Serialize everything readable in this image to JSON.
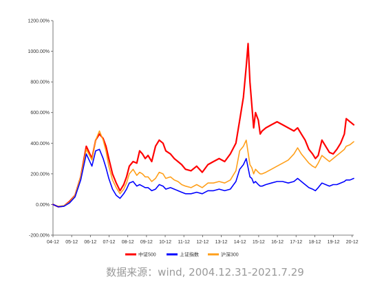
{
  "chart_data": {
    "type": "line",
    "title": "",
    "xlabel": "",
    "ylabel": "",
    "ylim": [
      -200,
      1200
    ],
    "y_ticks": [
      "-200.00%",
      "0.00%",
      "200.00%",
      "400.00%",
      "600.00%",
      "800.00%",
      "1000.00%",
      "1200.00%"
    ],
    "y_tick_values": [
      -200,
      0,
      200,
      400,
      600,
      800,
      1000,
      1200
    ],
    "x_ticks": [
      "04-12",
      "05-12",
      "06-12",
      "07-12",
      "08-12",
      "09-12",
      "10-12",
      "11-12",
      "12-12",
      "13-12",
      "14-12",
      "15-12",
      "16-12",
      "17-12",
      "18-12",
      "19-12",
      "20-12"
    ],
    "x_tick_values": [
      2004.917,
      2005.917,
      2006.917,
      2007.917,
      2008.917,
      2009.917,
      2010.917,
      2011.917,
      2012.917,
      2013.917,
      2014.917,
      2015.917,
      2016.917,
      2017.917,
      2018.917,
      2019.917,
      2020.917
    ],
    "xlim": [
      2004.917,
      2021.0
    ],
    "grid": false,
    "legend_position": "bottom",
    "note": "数据来源：wind, 2004.12.31-2021.7.29",
    "series": [
      {
        "name": "中证500",
        "color": "#ff0000",
        "x": [
          2004.917,
          2005.2,
          2005.5,
          2005.8,
          2006.1,
          2006.4,
          2006.7,
          2007.0,
          2007.2,
          2007.4,
          2007.6,
          2007.75,
          2007.9,
          2008.1,
          2008.3,
          2008.5,
          2008.7,
          2008.85,
          2009.0,
          2009.2,
          2009.4,
          2009.55,
          2009.7,
          2009.85,
          2010.0,
          2010.2,
          2010.4,
          2010.6,
          2010.8,
          2010.95,
          2011.2,
          2011.4,
          2011.6,
          2011.8,
          2012.0,
          2012.3,
          2012.6,
          2012.9,
          2013.2,
          2013.5,
          2013.8,
          2014.1,
          2014.4,
          2014.7,
          2014.9,
          2015.1,
          2015.25,
          2015.35,
          2015.45,
          2015.55,
          2015.65,
          2015.75,
          2015.9,
          2016.0,
          2016.1,
          2016.3,
          2016.6,
          2016.9,
          2017.2,
          2017.5,
          2017.8,
          2018.0,
          2018.2,
          2018.4,
          2018.6,
          2018.8,
          2018.95,
          2019.1,
          2019.3,
          2019.5,
          2019.7,
          2019.9,
          2020.1,
          2020.3,
          2020.5,
          2020.6,
          2020.8,
          2021.0
        ],
        "values": [
          0,
          -15,
          -10,
          20,
          60,
          180,
          380,
          300,
          420,
          460,
          430,
          380,
          300,
          200,
          140,
          90,
          130,
          180,
          250,
          280,
          270,
          350,
          330,
          300,
          320,
          280,
          380,
          420,
          400,
          350,
          330,
          300,
          280,
          260,
          230,
          220,
          250,
          210,
          260,
          280,
          300,
          280,
          330,
          400,
          550,
          700,
          900,
          1050,
          800,
          650,
          500,
          600,
          550,
          460,
          480,
          500,
          520,
          540,
          520,
          500,
          480,
          500,
          460,
          420,
          360,
          330,
          300,
          320,
          420,
          380,
          340,
          330,
          360,
          400,
          460,
          560,
          540,
          520
        ]
      },
      {
        "name": "上证指数",
        "color": "#0000ff",
        "x": [
          2004.917,
          2005.2,
          2005.5,
          2005.8,
          2006.1,
          2006.4,
          2006.7,
          2007.0,
          2007.2,
          2007.4,
          2007.6,
          2007.75,
          2007.9,
          2008.1,
          2008.3,
          2008.5,
          2008.7,
          2008.85,
          2009.0,
          2009.2,
          2009.4,
          2009.55,
          2009.7,
          2009.85,
          2010.0,
          2010.2,
          2010.4,
          2010.6,
          2010.8,
          2010.95,
          2011.2,
          2011.4,
          2011.6,
          2011.8,
          2012.0,
          2012.3,
          2012.6,
          2012.9,
          2013.2,
          2013.5,
          2013.8,
          2014.1,
          2014.4,
          2014.7,
          2014.9,
          2015.1,
          2015.25,
          2015.35,
          2015.45,
          2015.55,
          2015.65,
          2015.75,
          2015.9,
          2016.0,
          2016.1,
          2016.3,
          2016.6,
          2016.9,
          2017.2,
          2017.5,
          2017.8,
          2018.0,
          2018.2,
          2018.4,
          2018.6,
          2018.8,
          2018.95,
          2019.1,
          2019.3,
          2019.5,
          2019.7,
          2019.9,
          2020.1,
          2020.3,
          2020.5,
          2020.6,
          2020.8,
          2021.0
        ],
        "values": [
          0,
          -15,
          -12,
          10,
          50,
          160,
          330,
          250,
          350,
          360,
          300,
          240,
          170,
          100,
          60,
          40,
          70,
          100,
          140,
          150,
          120,
          130,
          120,
          110,
          110,
          90,
          100,
          130,
          120,
          100,
          110,
          100,
          90,
          80,
          70,
          70,
          80,
          70,
          90,
          90,
          100,
          90,
          100,
          150,
          230,
          260,
          300,
          240,
          180,
          170,
          140,
          150,
          130,
          120,
          120,
          130,
          140,
          150,
          150,
          140,
          150,
          170,
          150,
          130,
          110,
          100,
          90,
          110,
          140,
          130,
          120,
          130,
          130,
          140,
          150,
          160,
          160,
          170
        ]
      },
      {
        "name": "沪深300",
        "color": "#ff9f1a",
        "x": [
          2004.917,
          2005.2,
          2005.5,
          2005.8,
          2006.1,
          2006.4,
          2006.7,
          2007.0,
          2007.2,
          2007.4,
          2007.6,
          2007.75,
          2007.9,
          2008.1,
          2008.3,
          2008.5,
          2008.7,
          2008.85,
          2009.0,
          2009.2,
          2009.4,
          2009.55,
          2009.7,
          2009.85,
          2010.0,
          2010.2,
          2010.4,
          2010.6,
          2010.8,
          2010.95,
          2011.2,
          2011.4,
          2011.6,
          2011.8,
          2012.0,
          2012.3,
          2012.6,
          2012.9,
          2013.2,
          2013.5,
          2013.8,
          2014.1,
          2014.4,
          2014.7,
          2014.9,
          2015.1,
          2015.25,
          2015.35,
          2015.45,
          2015.55,
          2015.65,
          2015.75,
          2015.9,
          2016.0,
          2016.1,
          2016.3,
          2016.6,
          2016.9,
          2017.2,
          2017.5,
          2017.8,
          2018.0,
          2018.2,
          2018.4,
          2018.6,
          2018.8,
          2018.95,
          2019.1,
          2019.3,
          2019.5,
          2019.7,
          2019.9,
          2020.1,
          2020.3,
          2020.5,
          2020.6,
          2020.8,
          2021.0
        ],
        "values": [
          0,
          -12,
          -8,
          15,
          60,
          180,
          360,
          290,
          420,
          480,
          420,
          350,
          250,
          160,
          110,
          70,
          100,
          140,
          200,
          230,
          190,
          210,
          200,
          180,
          180,
          150,
          170,
          210,
          200,
          170,
          180,
          160,
          150,
          130,
          120,
          110,
          130,
          110,
          140,
          140,
          150,
          140,
          160,
          220,
          350,
          380,
          420,
          340,
          260,
          240,
          200,
          230,
          210,
          200,
          200,
          210,
          230,
          250,
          270,
          290,
          330,
          370,
          330,
          300,
          270,
          250,
          240,
          270,
          320,
          300,
          280,
          300,
          320,
          340,
          360,
          380,
          390,
          410
        ]
      }
    ]
  }
}
